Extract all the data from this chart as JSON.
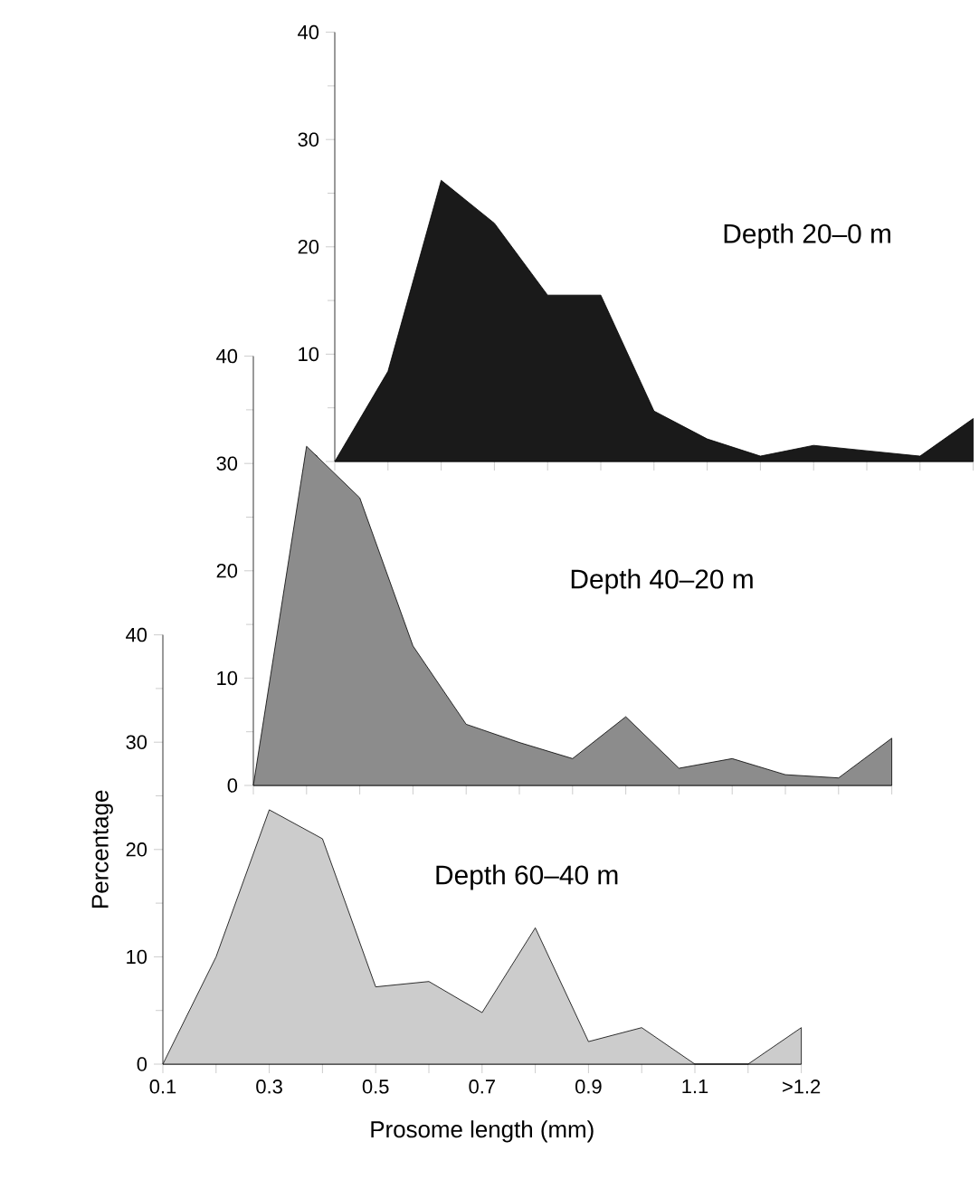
{
  "chart_data": [
    {
      "type": "area",
      "title": "Depth 20–0 m",
      "categories": [
        null,
        null,
        null,
        null,
        null,
        null,
        null,
        null,
        null,
        null,
        null,
        null,
        null
      ],
      "color": "#1a1a1a",
      "values": [
        0,
        8.4,
        26.2,
        22.2,
        15.5,
        15.5,
        4.7,
        2.1,
        0.5,
        1.5,
        1.0,
        0.5,
        4
      ],
      "ylim": [
        0,
        40
      ],
      "yticks": [
        0,
        10,
        20,
        30,
        40
      ],
      "tick_labels": "y"
    },
    {
      "type": "area",
      "title": "Depth 40–20 m",
      "categories": [
        null,
        null,
        null,
        null,
        null,
        null,
        null,
        null,
        null,
        null,
        null,
        null,
        null
      ],
      "color": "#8c8c8c",
      "values": [
        0,
        31.6,
        26.8,
        13.0,
        5.7,
        4.0,
        2.5,
        6.4,
        1.6,
        2.5,
        1.0,
        0.7,
        4.4
      ],
      "ylim": [
        0,
        40
      ],
      "yticks": [
        0,
        10,
        20,
        30,
        40
      ],
      "tick_labels": "y"
    },
    {
      "type": "area",
      "title": "Depth 60–40 m",
      "xlabel": "Prosome length (mm)",
      "ylabel": "Percentage",
      "categories": [
        "0.1",
        null,
        "0.3",
        null,
        "0.5",
        null,
        "0.7",
        null,
        "0.9",
        null,
        "1.1",
        null,
        ">1.2"
      ],
      "color": "#cccccc",
      "values": [
        0,
        10,
        23.7,
        21,
        7.2,
        7.7,
        4.8,
        12.7,
        2.1,
        3.4,
        0,
        0,
        3.4
      ],
      "ylim": [
        0,
        40
      ],
      "yticks": [
        0,
        10,
        20,
        30,
        40
      ]
    }
  ]
}
